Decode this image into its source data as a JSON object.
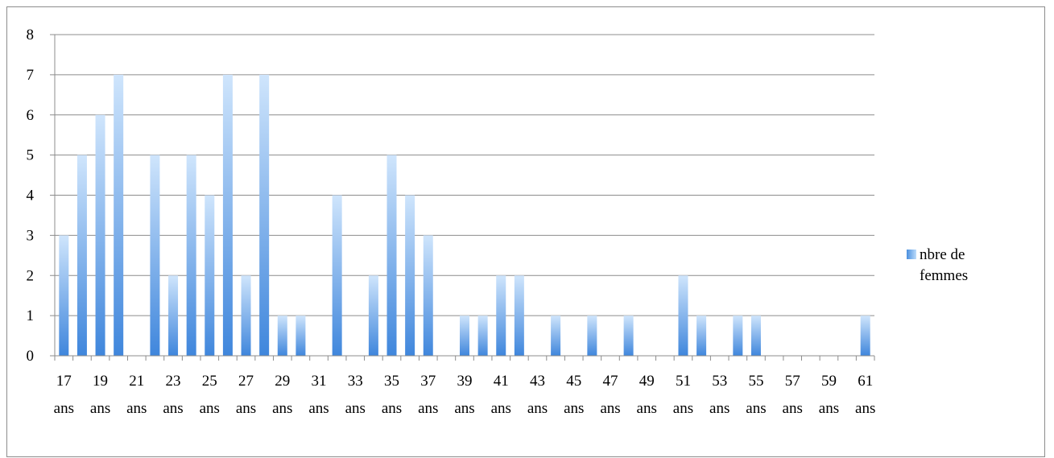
{
  "chart_data": {
    "type": "bar",
    "title": "",
    "xlabel": "",
    "ylabel": "",
    "ylim": [
      0,
      8
    ],
    "yticks": [
      "0",
      "1",
      "2",
      "3",
      "4",
      "5",
      "6",
      "7",
      "8"
    ],
    "grid": true,
    "legend_position": "right",
    "colors": {
      "bar_dark": "#3f86dc",
      "bar_light": "#cfe5fc",
      "grid": "#8c8c8c"
    },
    "categories": [
      "17 ans",
      "18 ans",
      "19 ans",
      "20 ans",
      "21 ans",
      "22 ans",
      "23 ans",
      "24 ans",
      "25 ans",
      "26 ans",
      "27 ans",
      "28 ans",
      "29 ans",
      "30 ans",
      "31 ans",
      "32 ans",
      "33 ans",
      "34 ans",
      "35 ans",
      "36 ans",
      "37 ans",
      "38 ans",
      "39 ans",
      "40 ans",
      "41 ans",
      "42 ans",
      "43 ans",
      "44 ans",
      "45 ans",
      "46 ans",
      "47 ans",
      "48 ans",
      "49 ans",
      "50 ans",
      "51 ans",
      "52 ans",
      "53 ans",
      "54 ans",
      "55 ans",
      "56 ans",
      "57 ans",
      "58 ans",
      "59 ans",
      "60 ans",
      "61 ans"
    ],
    "x_tick_labels": [
      {
        "num": "17",
        "unit": "ans"
      },
      {
        "num": "19",
        "unit": "ans"
      },
      {
        "num": "21",
        "unit": "ans"
      },
      {
        "num": "23",
        "unit": "ans"
      },
      {
        "num": "25",
        "unit": "ans"
      },
      {
        "num": "27",
        "unit": "ans"
      },
      {
        "num": "29",
        "unit": "ans"
      },
      {
        "num": "31",
        "unit": "ans"
      },
      {
        "num": "33",
        "unit": "ans"
      },
      {
        "num": "35",
        "unit": "ans"
      },
      {
        "num": "37",
        "unit": "ans"
      },
      {
        "num": "39",
        "unit": "ans"
      },
      {
        "num": "41",
        "unit": "ans"
      },
      {
        "num": "43",
        "unit": "ans"
      },
      {
        "num": "45",
        "unit": "ans"
      },
      {
        "num": "47",
        "unit": "ans"
      },
      {
        "num": "49",
        "unit": "ans"
      },
      {
        "num": "51",
        "unit": "ans"
      },
      {
        "num": "53",
        "unit": "ans"
      },
      {
        "num": "55",
        "unit": "ans"
      },
      {
        "num": "57",
        "unit": "ans"
      },
      {
        "num": "59",
        "unit": "ans"
      },
      {
        "num": "61",
        "unit": "ans"
      }
    ],
    "series": [
      {
        "name": "nbre de femmes",
        "values": [
          3,
          5,
          6,
          7,
          0,
          5,
          2,
          5,
          4,
          7,
          2,
          7,
          1,
          1,
          0,
          4,
          0,
          2,
          5,
          4,
          3,
          0,
          1,
          1,
          2,
          2,
          0,
          1,
          0,
          1,
          0,
          1,
          0,
          0,
          2,
          1,
          0,
          1,
          1,
          0,
          0,
          0,
          0,
          0,
          1
        ]
      }
    ]
  },
  "legend": {
    "line1": "nbre de",
    "line2": "femmes"
  }
}
